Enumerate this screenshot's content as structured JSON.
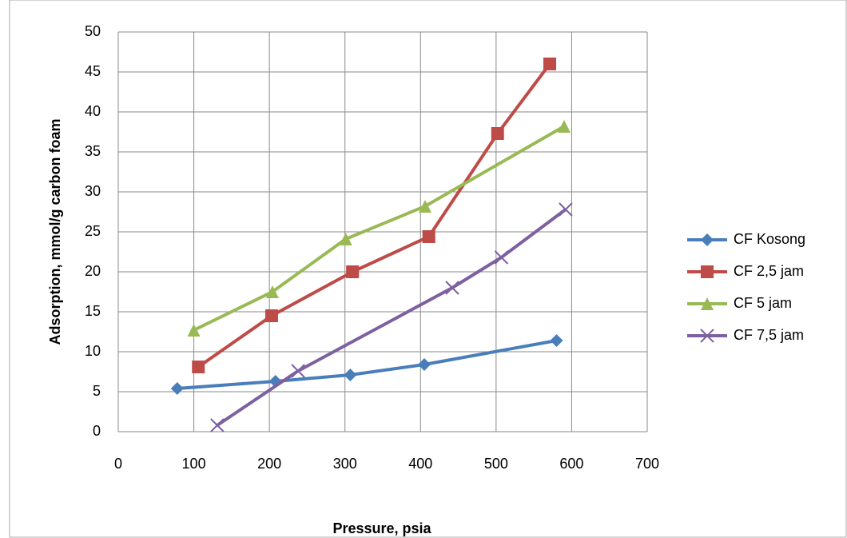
{
  "chart_data": {
    "type": "scatter",
    "x_label": "Pressure, psia",
    "y_label": "Adsorption, mmol/g carbon foam",
    "xlim": [
      0,
      700
    ],
    "xticks": [
      0,
      100,
      200,
      300,
      400,
      500,
      600,
      700
    ],
    "ylim": [
      0,
      50
    ],
    "yticks": [
      0,
      5,
      10,
      15,
      20,
      25,
      30,
      35,
      40,
      45,
      50
    ],
    "grid": true,
    "legend": "right",
    "series": [
      {
        "name": "CF Kosong",
        "color": "#4a7ebb",
        "marker": "diamond",
        "x": [
          78,
          208,
          307,
          405,
          580
        ],
        "values": [
          5.4,
          6.3,
          7.1,
          8.4,
          11.4
        ]
      },
      {
        "name": "CF 2,5 jam",
        "color": "#be4b48",
        "marker": "square",
        "x": [
          106,
          203,
          310,
          411,
          502,
          571
        ],
        "values": [
          8.1,
          14.5,
          20,
          24.4,
          37.3,
          46
        ]
      },
      {
        "name": "CF 5 jam",
        "color": "#98b954",
        "marker": "triangle",
        "x": [
          100,
          204,
          301,
          406,
          590
        ],
        "values": [
          12.7,
          17.5,
          24.1,
          28.2,
          38.2
        ]
      },
      {
        "name": "CF 7,5 jam",
        "color": "#7d60a0",
        "marker": "x",
        "x": [
          131,
          238,
          442,
          507,
          592
        ],
        "values": [
          0.8,
          7.6,
          18,
          21.8,
          27.8
        ]
      }
    ]
  }
}
